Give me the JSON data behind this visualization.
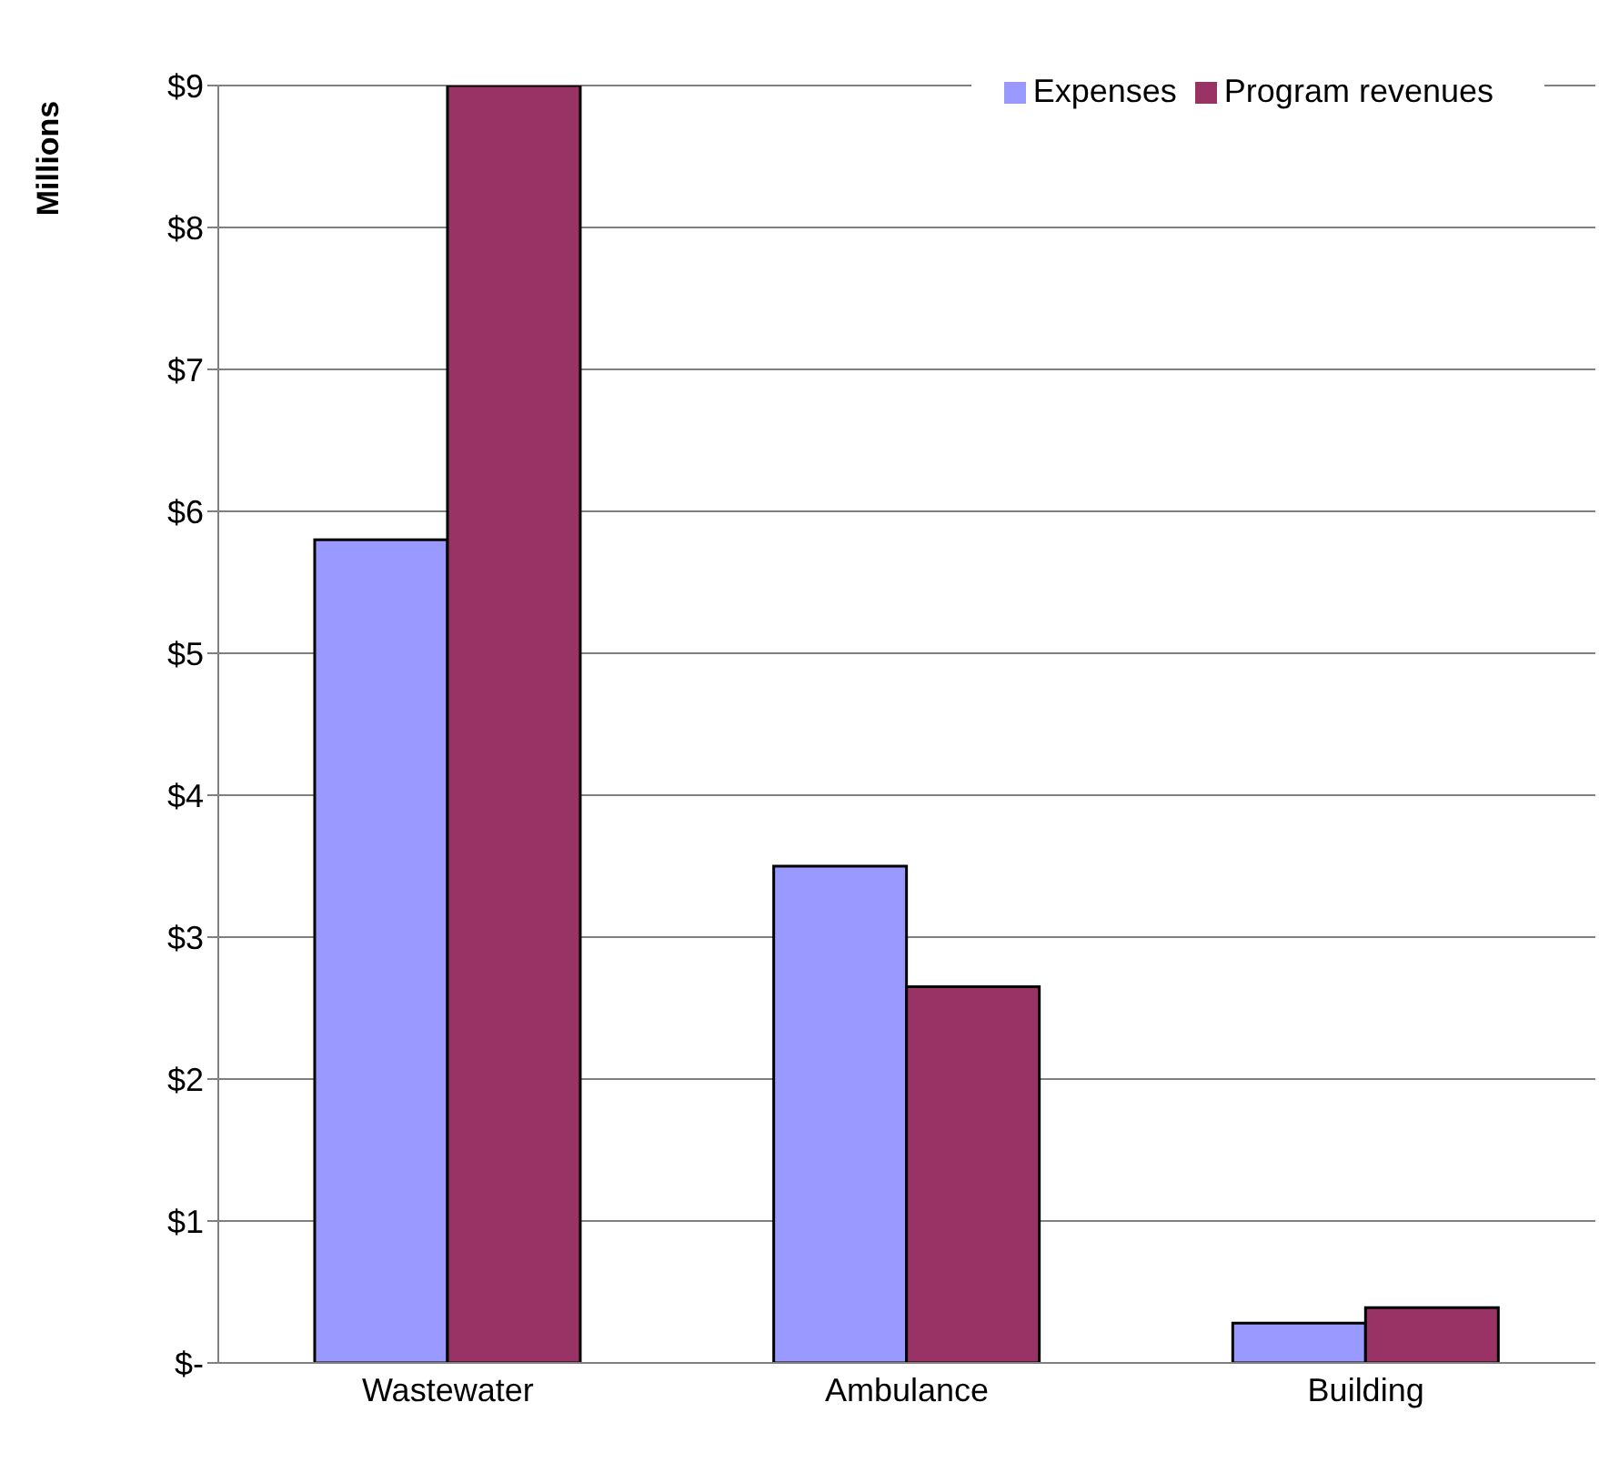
{
  "chart_data": {
    "type": "bar",
    "ylabel": "Millions",
    "categories": [
      "Wastewater",
      "Ambulance",
      "Building"
    ],
    "series": [
      {
        "name": "Expenses",
        "color": "#9999ff",
        "values": [
          5.8,
          3.5,
          0.28
        ]
      },
      {
        "name": "Program revenues",
        "color": "#993366",
        "values": [
          9,
          2.65,
          0.39
        ]
      }
    ],
    "ylim": [
      0,
      9
    ],
    "yticks": [
      {
        "value": 0,
        "label": "$-"
      },
      {
        "value": 1,
        "label": "$1"
      },
      {
        "value": 2,
        "label": "$2"
      },
      {
        "value": 3,
        "label": "$3"
      },
      {
        "value": 4,
        "label": "$4"
      },
      {
        "value": 5,
        "label": "$5"
      },
      {
        "value": 6,
        "label": "$6"
      },
      {
        "value": 7,
        "label": "$7"
      },
      {
        "value": 8,
        "label": "$8"
      },
      {
        "value": 9,
        "label": "$9"
      }
    ],
    "grid": "y",
    "legend": "top right"
  }
}
